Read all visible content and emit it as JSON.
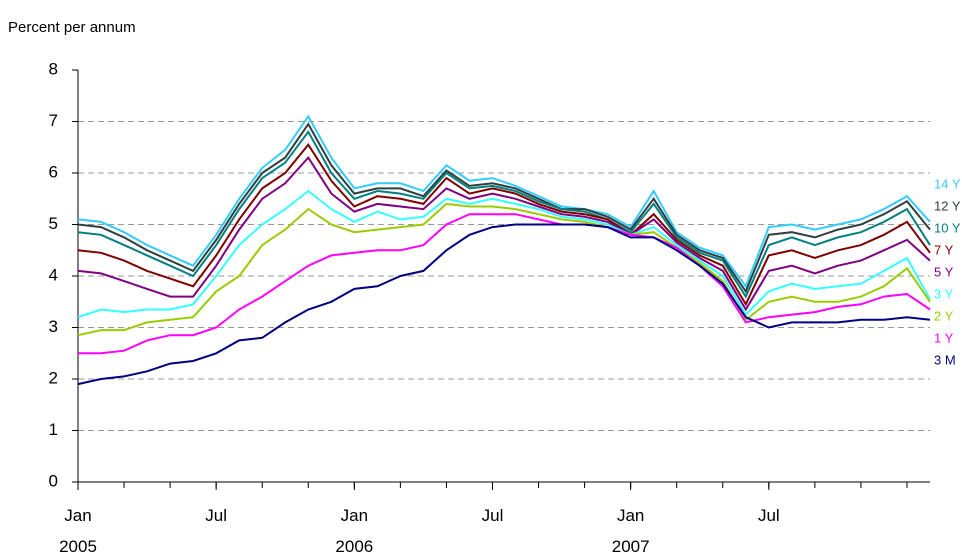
{
  "chart_data": {
    "type": "line",
    "y_label": "Percent per annum",
    "x": [
      "2005-01",
      "2005-02",
      "2005-03",
      "2005-04",
      "2005-05",
      "2005-06",
      "2005-07",
      "2005-08",
      "2005-09",
      "2005-10",
      "2005-11",
      "2005-12",
      "2006-01",
      "2006-02",
      "2006-03",
      "2006-04",
      "2006-05",
      "2006-06",
      "2006-07",
      "2006-08",
      "2006-09",
      "2006-10",
      "2006-11",
      "2006-12",
      "2007-01",
      "2007-02",
      "2007-03",
      "2007-04",
      "2007-05",
      "2007-06",
      "2007-07",
      "2007-08",
      "2007-09",
      "2007-10",
      "2007-11",
      "2007-12",
      "2008-01",
      "2008-02"
    ],
    "xlim": [
      "2005-01",
      "2008-02"
    ],
    "xticks": [
      {
        "value": "2005-01",
        "label": "Jan 2005"
      },
      {
        "value": "2005-07",
        "label": "Jul"
      },
      {
        "value": "2006-01",
        "label": "Jan 2006"
      },
      {
        "value": "2006-07",
        "label": "Jul"
      },
      {
        "value": "2007-01",
        "label": "Jan 2007"
      },
      {
        "value": "2007-07",
        "label": "Jul"
      }
    ],
    "ylim": [
      0,
      8
    ],
    "yticks": [
      0,
      1,
      2,
      3,
      4,
      5,
      6,
      7,
      8
    ],
    "grid": true,
    "series": [
      {
        "name": "14 Y",
        "color": "#33ccff",
        "values": [
          5.1,
          5.05,
          4.85,
          4.6,
          4.4,
          4.2,
          4.8,
          5.5,
          6.1,
          6.45,
          7.1,
          6.3,
          5.7,
          5.8,
          5.8,
          5.65,
          6.15,
          5.85,
          5.9,
          5.75,
          5.55,
          5.35,
          5.3,
          5.2,
          4.95,
          5.65,
          4.85,
          4.55,
          4.4,
          3.8,
          4.95,
          5.0,
          4.9,
          5.0,
          5.1,
          5.3,
          5.55,
          5.05
        ]
      },
      {
        "name": "12 Y",
        "color": "#2f3f3f",
        "values": [
          5.0,
          4.95,
          4.75,
          4.5,
          4.3,
          4.1,
          4.7,
          5.4,
          6.0,
          6.3,
          6.95,
          6.15,
          5.6,
          5.7,
          5.7,
          5.55,
          6.05,
          5.75,
          5.8,
          5.7,
          5.5,
          5.3,
          5.3,
          5.15,
          4.9,
          5.5,
          4.8,
          4.5,
          4.35,
          3.7,
          4.8,
          4.85,
          4.75,
          4.9,
          5.0,
          5.2,
          5.45,
          4.9
        ]
      },
      {
        "name": "10 Y",
        "color": "#008080",
        "values": [
          4.85,
          4.8,
          4.6,
          4.4,
          4.2,
          4.0,
          4.6,
          5.3,
          5.9,
          6.2,
          6.8,
          6.0,
          5.5,
          5.65,
          5.6,
          5.5,
          6.0,
          5.7,
          5.75,
          5.65,
          5.45,
          5.3,
          5.25,
          5.1,
          4.85,
          5.4,
          4.75,
          4.45,
          4.3,
          3.6,
          4.6,
          4.75,
          4.6,
          4.75,
          4.85,
          5.05,
          5.3,
          4.6
        ]
      },
      {
        "name": "7 Y",
        "color": "#800000",
        "values": [
          4.5,
          4.45,
          4.3,
          4.1,
          3.95,
          3.8,
          4.4,
          5.1,
          5.7,
          6.0,
          6.55,
          5.85,
          5.35,
          5.55,
          5.5,
          5.4,
          5.9,
          5.6,
          5.7,
          5.6,
          5.4,
          5.25,
          5.2,
          5.1,
          4.8,
          5.2,
          4.7,
          4.4,
          4.2,
          3.45,
          4.4,
          4.5,
          4.35,
          4.5,
          4.6,
          4.8,
          5.05,
          4.45
        ]
      },
      {
        "name": "5 Y",
        "color": "#800080",
        "values": [
          4.1,
          4.05,
          3.9,
          3.75,
          3.6,
          3.6,
          4.2,
          4.9,
          5.5,
          5.8,
          6.3,
          5.6,
          5.25,
          5.4,
          5.35,
          5.3,
          5.7,
          5.5,
          5.6,
          5.5,
          5.35,
          5.2,
          5.15,
          5.05,
          4.8,
          5.1,
          4.65,
          4.35,
          4.1,
          3.35,
          4.1,
          4.2,
          4.05,
          4.2,
          4.3,
          4.5,
          4.7,
          4.3
        ]
      },
      {
        "name": "3 Y",
        "color": "#33ffff",
        "values": [
          3.2,
          3.35,
          3.3,
          3.35,
          3.35,
          3.45,
          4.0,
          4.6,
          5.0,
          5.3,
          5.65,
          5.3,
          5.05,
          5.25,
          5.1,
          5.15,
          5.5,
          5.4,
          5.5,
          5.4,
          5.3,
          5.15,
          5.1,
          5.0,
          4.8,
          4.95,
          4.6,
          4.3,
          4.0,
          3.25,
          3.7,
          3.85,
          3.75,
          3.8,
          3.85,
          4.1,
          4.35,
          3.55
        ]
      },
      {
        "name": "2 Y",
        "color": "#99cc00",
        "values": [
          2.85,
          2.95,
          2.95,
          3.1,
          3.15,
          3.2,
          3.7,
          4.0,
          4.6,
          4.9,
          5.3,
          5.0,
          4.85,
          4.9,
          4.95,
          5.0,
          5.4,
          5.35,
          5.35,
          5.3,
          5.2,
          5.1,
          5.05,
          4.95,
          4.8,
          4.85,
          4.55,
          4.25,
          3.9,
          3.15,
          3.5,
          3.6,
          3.5,
          3.5,
          3.6,
          3.8,
          4.15,
          3.5
        ]
      },
      {
        "name": "1 Y",
        "color": "#ff00ff",
        "values": [
          2.5,
          2.5,
          2.55,
          2.75,
          2.85,
          2.85,
          3.0,
          3.35,
          3.6,
          3.9,
          4.2,
          4.4,
          4.45,
          4.5,
          4.5,
          4.6,
          5.0,
          5.2,
          5.2,
          5.2,
          5.1,
          5.0,
          5.0,
          4.95,
          4.8,
          4.75,
          4.55,
          4.2,
          3.8,
          3.1,
          3.2,
          3.25,
          3.3,
          3.4,
          3.45,
          3.6,
          3.65,
          3.35
        ]
      },
      {
        "name": "3 M",
        "color": "#000080",
        "values": [
          1.9,
          2.0,
          2.05,
          2.15,
          2.3,
          2.35,
          2.5,
          2.75,
          2.8,
          3.1,
          3.35,
          3.5,
          3.75,
          3.8,
          4.0,
          4.1,
          4.5,
          4.8,
          4.95,
          5.0,
          5.0,
          5.0,
          5.0,
          4.95,
          4.75,
          4.75,
          4.5,
          4.2,
          3.85,
          3.2,
          3.0,
          3.1,
          3.1,
          3.1,
          3.15,
          3.15,
          3.2,
          3.15
        ]
      }
    ]
  }
}
